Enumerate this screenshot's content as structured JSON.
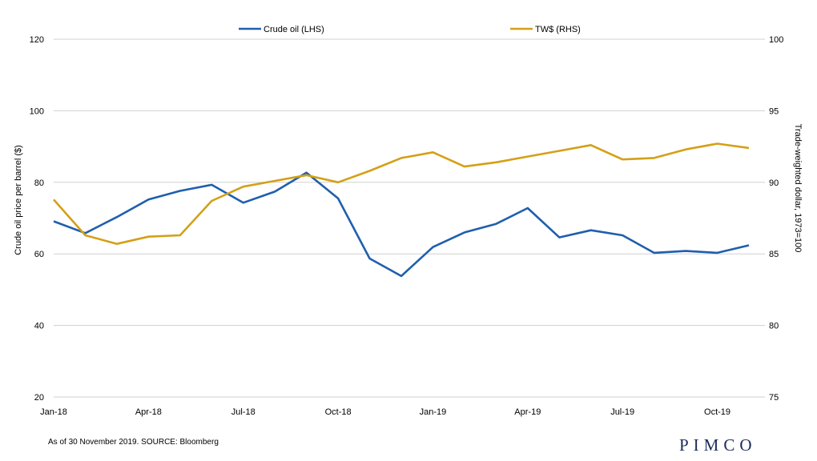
{
  "chart_data": {
    "type": "line",
    "categories": [
      "Jan-18",
      "Feb-18",
      "Mar-18",
      "Apr-18",
      "May-18",
      "Jun-18",
      "Jul-18",
      "Aug-18",
      "Sep-18",
      "Oct-18",
      "Nov-18",
      "Dec-18",
      "Jan-19",
      "Feb-19",
      "Mar-19",
      "Apr-19",
      "May-19",
      "Jun-19",
      "Jul-19",
      "Aug-19",
      "Sep-19",
      "Oct-19",
      "Nov-19"
    ],
    "x_tick_labels": [
      "Jan-18",
      "Apr-18",
      "Jul-18",
      "Oct-18",
      "Jan-19",
      "Apr-19",
      "Jul-19",
      "Oct-19"
    ],
    "series": [
      {
        "name": "Crude oil (LHS)",
        "axis": "left",
        "color": "#1f5fad",
        "values": [
          69.1,
          65.8,
          70.3,
          75.2,
          77.6,
          79.3,
          74.3,
          77.4,
          82.7,
          75.5,
          58.7,
          53.8,
          61.9,
          66.0,
          68.4,
          72.8,
          64.6,
          66.6,
          65.2,
          60.3,
          60.8,
          60.3,
          62.4
        ]
      },
      {
        "name": "TW$ (RHS)",
        "axis": "right",
        "color": "#d4a017",
        "values": [
          88.8,
          86.3,
          85.7,
          86.2,
          86.3,
          88.7,
          89.7,
          90.1,
          90.5,
          90.0,
          90.8,
          91.7,
          92.1,
          91.1,
          91.4,
          91.8,
          92.2,
          92.6,
          91.6,
          91.7,
          92.3,
          92.7,
          92.4
        ]
      }
    ],
    "y_left": {
      "label": "Crude oil price per barrel ($)",
      "min": 20,
      "max": 120,
      "ticks": [
        "20",
        "40",
        "60",
        "80",
        "100",
        "120"
      ]
    },
    "y_right": {
      "label": "Trade-weighted dollar, 1973=100",
      "min": 75,
      "max": 100,
      "ticks": [
        "75",
        "80",
        "85",
        "90",
        "95",
        "100"
      ]
    },
    "grid": true,
    "legend_position": "top"
  },
  "footnote": "As of 30 November 2019. SOURCE: Bloomberg",
  "logo": "PIMCO"
}
